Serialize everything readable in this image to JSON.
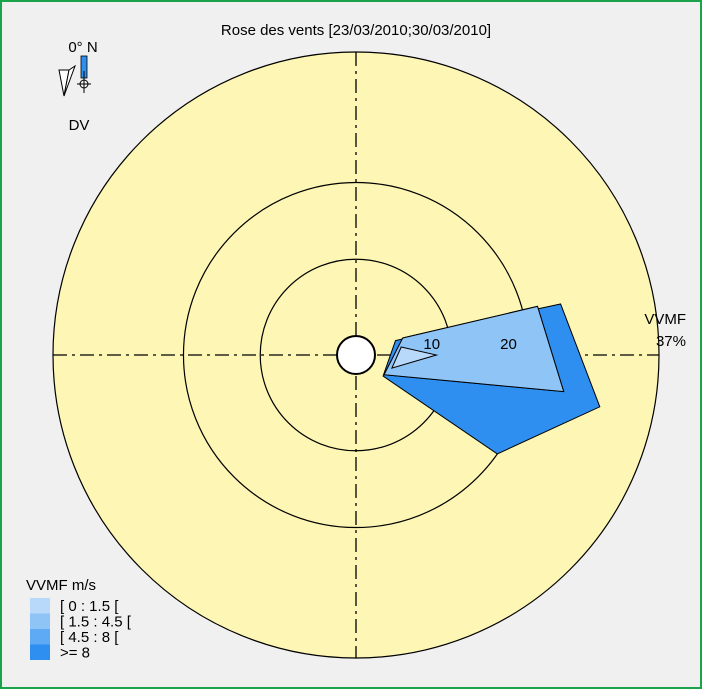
{
  "chart_data": {
    "type": "wind-rose",
    "title": "Rose des vents [23/03/2010;30/03/2010]",
    "direction_indicator": {
      "label_north": "0° N",
      "label_dir": "DV"
    },
    "radial_ticks": [
      10,
      20
    ],
    "outer_label": {
      "variable": "VVMF",
      "max_percent": "37%"
    },
    "radial_max": 37,
    "legend": {
      "title": "VVMF m/s",
      "entries": [
        {
          "label": "[ 0 : 1.5 [",
          "color": "#b9d9fb"
        },
        {
          "label": "[ 1.5 : 4.5 [",
          "color": "#8fc4f6"
        },
        {
          "label": "[ 4.5 : 8 [",
          "color": "#5eaaf5"
        },
        {
          "label": ">= 8",
          "color": "#2f8ff0"
        }
      ]
    },
    "colors": {
      "disc": "#fdf6b4",
      "background": "#f0f0f0",
      "border": "#1aa34a"
    },
    "series": [
      {
        "name": "[ 0 : 1.5 [",
        "color": "#b9d9fb",
        "points": [
          {
            "angle": 80,
            "r": 3.5
          },
          {
            "angle": 90,
            "r": 8
          },
          {
            "angle": 110,
            "r": 2.5
          }
        ]
      },
      {
        "name": "[ 1.5 : 4.5 [",
        "color": "#8fc4f6",
        "points": [
          {
            "angle": 70,
            "r": 4
          },
          {
            "angle": 75,
            "r": 22
          },
          {
            "angle": 100,
            "r": 25
          },
          {
            "angle": 125,
            "r": 2
          }
        ]
      },
      {
        "name": "[ 4.5 : 8 [",
        "color": "#5eaaf5",
        "points": [
          {
            "angle": 70,
            "r": 4
          },
          {
            "angle": 75,
            "r": 22
          },
          {
            "angle": 100,
            "r": 25
          },
          {
            "angle": 125,
            "r": 2
          }
        ]
      },
      {
        "name": ">= 8",
        "color": "#2f8ff0",
        "points": [
          {
            "angle": 70,
            "r": 3
          },
          {
            "angle": 74,
            "r": 11
          },
          {
            "angle": 76,
            "r": 25
          },
          {
            "angle": 102,
            "r": 30
          },
          {
            "angle": 125,
            "r": 20
          },
          {
            "angle": 128,
            "r": 2
          }
        ]
      }
    ]
  }
}
